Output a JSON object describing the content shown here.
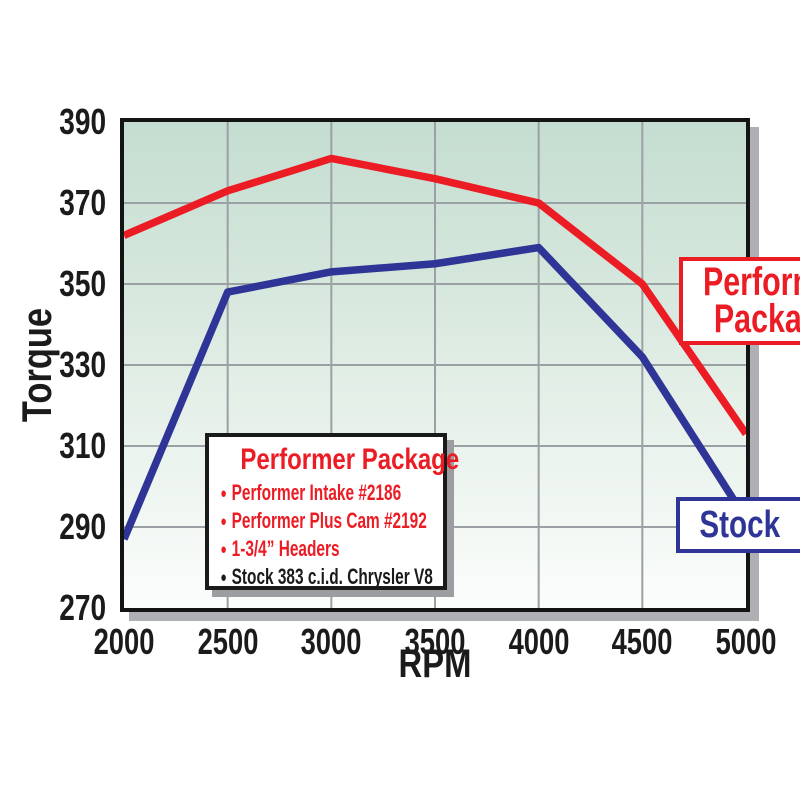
{
  "chart_data": {
    "type": "line",
    "title": "",
    "xlabel": "RPM",
    "ylabel": "Torque",
    "x": [
      2000,
      2500,
      3000,
      3500,
      4000,
      4500,
      5000
    ],
    "xlim": [
      2000,
      5000
    ],
    "ylim": [
      270,
      390
    ],
    "xticks": [
      2000,
      2500,
      3000,
      3500,
      4000,
      4500,
      5000
    ],
    "yticks": [
      270,
      290,
      310,
      330,
      350,
      370,
      390
    ],
    "grid": true,
    "legend_position": "labels-on-plot",
    "series": [
      {
        "name": "Performer Package",
        "color": "#EC1C24",
        "values": [
          362,
          373,
          381,
          376,
          370,
          350,
          313
        ]
      },
      {
        "name": "Stock",
        "color": "#2E3596",
        "values": [
          287,
          348,
          353,
          355,
          359,
          332,
          292
        ]
      }
    ],
    "plot_style": {
      "bg_top": "#c5ddd1",
      "bg_bottom": "#fbfdfc",
      "grid_color": "#9aa0a3",
      "border_color": "#141414",
      "shadow_color": "#aeb0b3",
      "line_width": 7.5
    }
  },
  "labels": {
    "performer_box": {
      "lines": [
        "Performer",
        "Package"
      ],
      "color": "#EC1C24"
    },
    "stock_box": {
      "text": "Stock",
      "color": "#2E3596"
    }
  },
  "info_box": {
    "title": "Performer Package",
    "title_color": "#EC1C24",
    "items": [
      {
        "text": "Performer Intake #2186",
        "color": "#EC1C24"
      },
      {
        "text": "Performer Plus Cam #2192",
        "color": "#EC1C24"
      },
      {
        "text": "1-3/4” Headers",
        "color": "#EC1C24"
      },
      {
        "text": "Stock 383 c.i.d. Chrysler V8",
        "color": "#1a1a1a"
      }
    ]
  }
}
